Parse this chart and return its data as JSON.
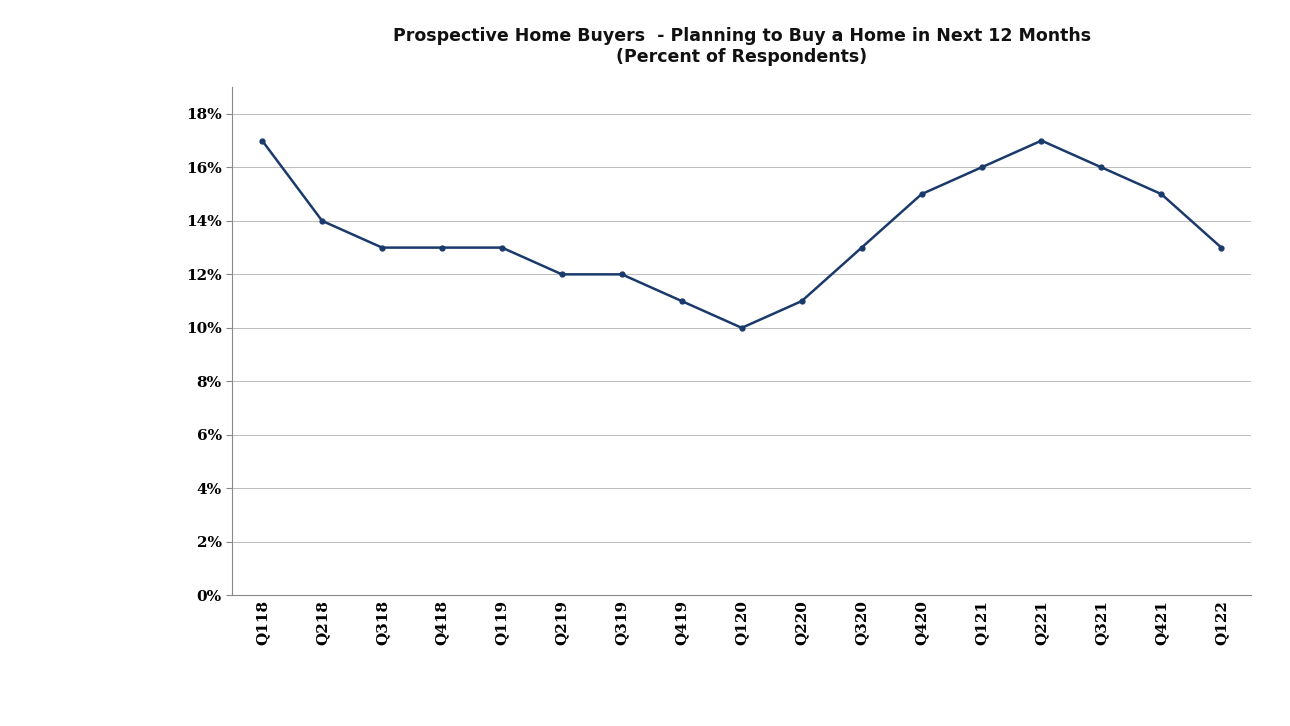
{
  "title_line1": "Prospective Home Buyers  - Planning to Buy a Home in Next 12 Months",
  "title_line2": "(Percent of Respondents)",
  "categories": [
    "Q118",
    "Q218",
    "Q318",
    "Q418",
    "Q119",
    "Q219",
    "Q319",
    "Q419",
    "Q120",
    "Q220",
    "Q320",
    "Q420",
    "Q121",
    "Q221",
    "Q321",
    "Q421",
    "Q122"
  ],
  "values": [
    0.17,
    0.14,
    0.13,
    0.13,
    0.13,
    0.12,
    0.12,
    0.11,
    0.1,
    0.11,
    0.13,
    0.15,
    0.16,
    0.17,
    0.16,
    0.15,
    0.13
  ],
  "line_color": "#1a3a6b",
  "line_width": 1.8,
  "marker": "o",
  "marker_size": 3.5,
  "ylim": [
    0,
    0.19
  ],
  "yticks": [
    0.0,
    0.02,
    0.04,
    0.06,
    0.08,
    0.1,
    0.12,
    0.14,
    0.16,
    0.18
  ],
  "background_color": "#ffffff",
  "plot_bg_color": "#ffffff",
  "grid_color": "#bbbbbb",
  "title_fontsize": 12.5,
  "tick_fontsize": 11,
  "figure_width": 12.9,
  "figure_height": 7.26
}
